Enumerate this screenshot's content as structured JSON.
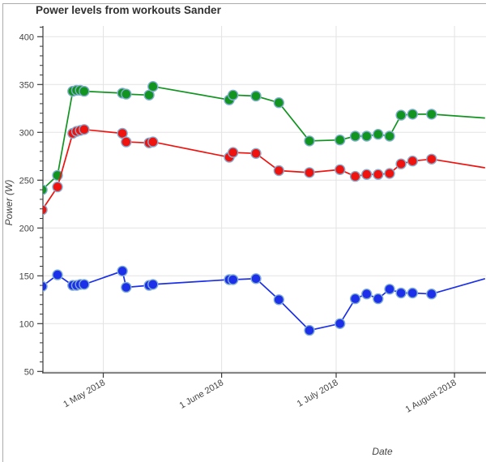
{
  "chart_data": {
    "type": "line",
    "title": "Power levels from workouts Sander",
    "xlabel": "Date",
    "ylabel": "Power (W)",
    "grid": true,
    "legend": "none",
    "xlim": [
      "2018-04-15",
      "2018-08-09"
    ],
    "ylim": [
      48,
      411
    ],
    "y_ticks": [
      50,
      100,
      150,
      200,
      250,
      300,
      350,
      400
    ],
    "y_tick_labels": [
      "50",
      "100",
      "150",
      "200",
      "250",
      "300",
      "350",
      "400"
    ],
    "y_minor_tick_step": 10,
    "x_ticks": [
      {
        "date": "2018-05-01",
        "label": "1 May 2018"
      },
      {
        "date": "2018-06-01",
        "label": "1 June 2018"
      },
      {
        "date": "2018-07-01",
        "label": "1 July 2018"
      },
      {
        "date": "2018-08-01",
        "label": "1 August 2018"
      }
    ],
    "dates": [
      "2018-04-15",
      "2018-04-19",
      "2018-04-23",
      "2018-04-24",
      "2018-04-25",
      "2018-04-26",
      "2018-05-06",
      "2018-05-07",
      "2018-05-13",
      "2018-05-14",
      "2018-06-03",
      "2018-06-04",
      "2018-06-10",
      "2018-06-16",
      "2018-06-24",
      "2018-07-02",
      "2018-07-06",
      "2018-07-09",
      "2018-07-12",
      "2018-07-15",
      "2018-07-18",
      "2018-07-21",
      "2018-07-26"
    ],
    "series": [
      {
        "name": "green",
        "color": "#129420",
        "values": [
          240,
          255,
          343,
          344,
          344,
          343,
          341,
          340,
          339,
          348,
          334,
          339,
          338,
          331,
          291,
          292,
          296,
          296,
          298,
          296,
          318,
          319,
          319
        ],
        "edge_value": 315
      },
      {
        "name": "red",
        "color": "#ef130f",
        "values": [
          219,
          243,
          299,
          301,
          302,
          303,
          299,
          290,
          289,
          290,
          274,
          279,
          278,
          260,
          258,
          261,
          254,
          256,
          256,
          257,
          267,
          270,
          272
        ],
        "edge_value": 263
      },
      {
        "name": "blue",
        "color": "#1b30e8",
        "values": [
          139,
          151,
          140,
          140,
          141,
          141,
          155,
          138,
          140,
          141,
          146,
          146,
          147,
          125,
          93,
          100,
          126,
          131,
          126,
          136,
          132,
          132,
          131
        ],
        "edge_value": 147
      }
    ],
    "edge_date": "2018-08-09",
    "style": {
      "gridline_color": "#e3e3e3",
      "axis_color": "#3a3a3a",
      "tick_label_color": "#444444",
      "marker_outline_color": "#82aed2",
      "background": "#ffffff",
      "frame_border_color": "#ababab"
    }
  }
}
